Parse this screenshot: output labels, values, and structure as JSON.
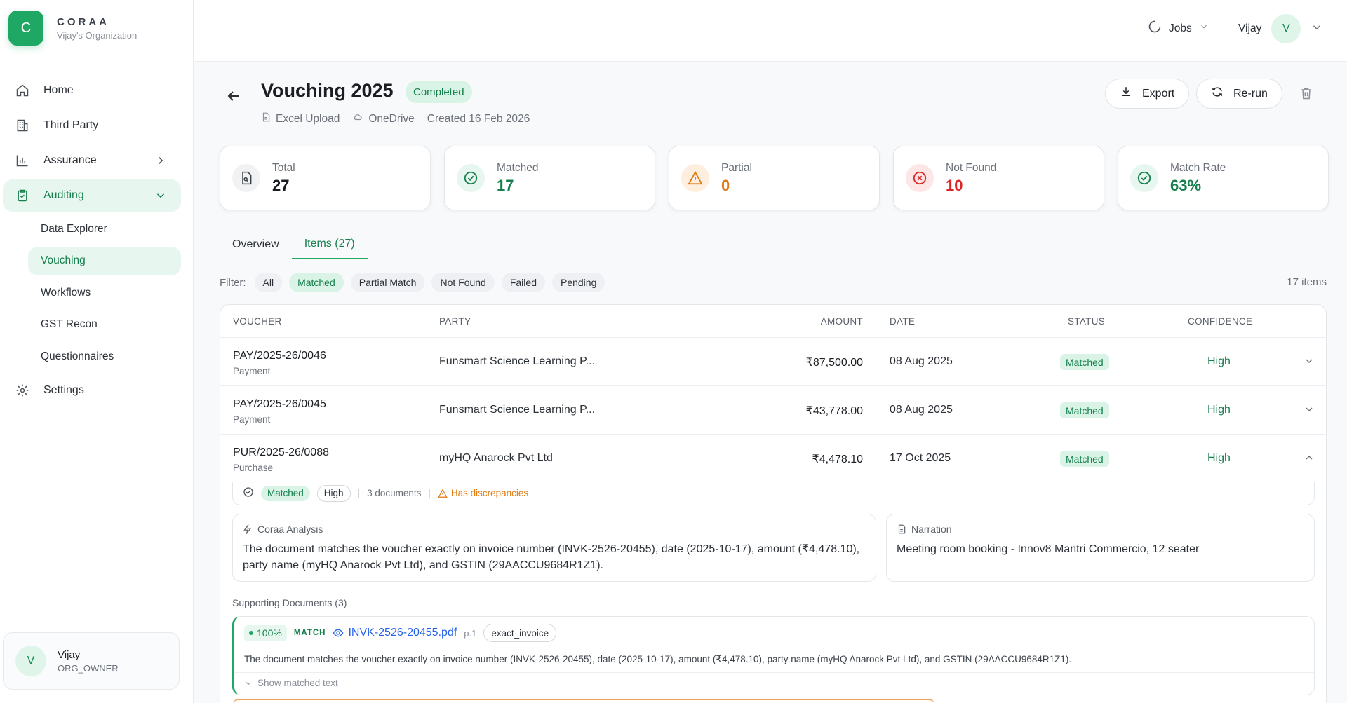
{
  "brand": {
    "logo_letter": "C",
    "name": "CORAA",
    "org": "Vijay's Organization"
  },
  "sidebar": {
    "items": [
      {
        "label": "Home",
        "icon": "home-icon"
      },
      {
        "label": "Third Party",
        "icon": "building-icon"
      },
      {
        "label": "Assurance",
        "icon": "bar-chart-icon"
      },
      {
        "label": "Auditing",
        "icon": "clipboard-check-icon"
      }
    ],
    "auditing_sub": [
      "Data Explorer",
      "Vouching",
      "Workflows",
      "GST Recon",
      "Questionnaires"
    ],
    "settings": "Settings",
    "user": {
      "initial": "V",
      "name": "Vijay",
      "role": "ORG_OWNER"
    }
  },
  "topbar": {
    "jobs_label": "Jobs",
    "user_name": "Vijay",
    "user_initial": "V"
  },
  "header": {
    "title": "Vouching 2025",
    "status": "Completed",
    "source": "Excel Upload",
    "storage": "OneDrive",
    "created": "Created 16 Feb 2026",
    "export_label": "Export",
    "rerun_label": "Re-run"
  },
  "stats": [
    {
      "label": "Total",
      "value": "27",
      "color": "#1a1d21",
      "bg": "#f1f2f4"
    },
    {
      "label": "Matched",
      "value": "17",
      "color": "#16804d",
      "bg": "#e7f6ee"
    },
    {
      "label": "Partial",
      "value": "0",
      "color": "#e07a14",
      "bg": "#fdeedd"
    },
    {
      "label": "Not Found",
      "value": "10",
      "color": "#dc2626",
      "bg": "#fde6e6"
    },
    {
      "label": "Match Rate",
      "value": "63%",
      "color": "#16804d",
      "bg": "#e7f6ee"
    }
  ],
  "tabs": {
    "overview": "Overview",
    "items": "Items (27)"
  },
  "filters": {
    "label": "Filter:",
    "chips": [
      "All",
      "Matched",
      "Partial Match",
      "Not Found",
      "Failed",
      "Pending"
    ],
    "active": "Matched",
    "count": "17 items"
  },
  "table": {
    "headers": {
      "voucher": "VOUCHER",
      "party": "PARTY",
      "amount": "AMOUNT",
      "date": "DATE",
      "status": "STATUS",
      "confidence": "CONFIDENCE"
    },
    "rows": [
      {
        "voucher": "PAY/2025-26/0046",
        "type": "Payment",
        "party": "Funsmart Science Learning P...",
        "amount": "₹87,500.00",
        "date": "08 Aug 2025",
        "status": "Matched",
        "confidence": "High"
      },
      {
        "voucher": "PAY/2025-26/0045",
        "type": "Payment",
        "party": "Funsmart Science Learning P...",
        "amount": "₹43,778.00",
        "date": "08 Aug 2025",
        "status": "Matched",
        "confidence": "High"
      },
      {
        "voucher": "PUR/2025-26/0088",
        "type": "Purchase",
        "party": "myHQ Anarock Pvt Ltd",
        "amount": "₹4,478.10",
        "date": "17 Oct 2025",
        "status": "Matched",
        "confidence": "High"
      }
    ]
  },
  "expanded": {
    "status": "Matched",
    "confidence": "High",
    "documents": "3 documents",
    "discrepancy": "Has discrepancies",
    "analysis_title": "Coraa Analysis",
    "analysis_text": "The document matches the voucher exactly on invoice number (INVK-2526-20455), date (2025-10-17), amount (₹4,478.10), party name (myHQ Anarock Pvt Ltd), and GSTIN (29AACCU9684R1Z1).",
    "narration_title": "Narration",
    "narration_text": "Meeting room booking - Innov8 Mantri Commercio, 12 seater",
    "supporting_title": "Supporting Documents (3)",
    "doc": {
      "match_pct": "100%",
      "match_label": "MATCH",
      "filename": "INVK-2526-20455.pdf",
      "page": "p.1",
      "type": "exact_invoice",
      "description": "The document matches the voucher exactly on invoice number (INVK-2526-20455), date (2025-10-17), amount (₹4,478.10), party name (myHQ Anarock Pvt Ltd), and GSTIN (29AACCU9684R1Z1).",
      "show_text": "Show matched text"
    }
  }
}
